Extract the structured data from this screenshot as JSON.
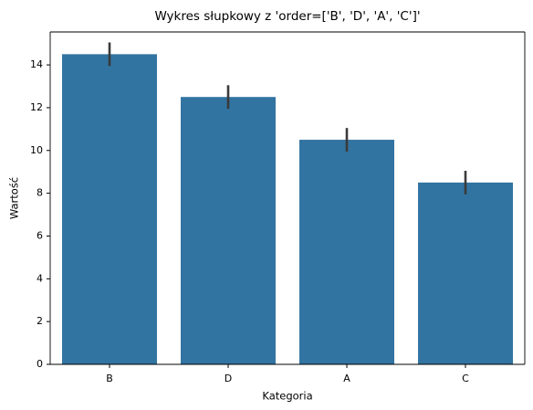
{
  "chart_data": {
    "type": "bar",
    "title": "Wykres słupkowy z 'order=['B', 'D', 'A', 'C']'",
    "x_label": "Kategoria",
    "y_label": "Wartość",
    "categories": [
      "B",
      "D",
      "A",
      "C"
    ],
    "values": [
      14.5,
      12.5,
      10.5,
      8.5
    ],
    "errors": [
      0.55,
      0.55,
      0.55,
      0.55
    ],
    "color": "#3274a1",
    "error_color": "#3a3a3a",
    "ylim": [
      0,
      15.54
    ],
    "yticks": [
      0,
      2,
      4,
      6,
      8,
      10,
      12,
      14
    ],
    "grid": false
  }
}
